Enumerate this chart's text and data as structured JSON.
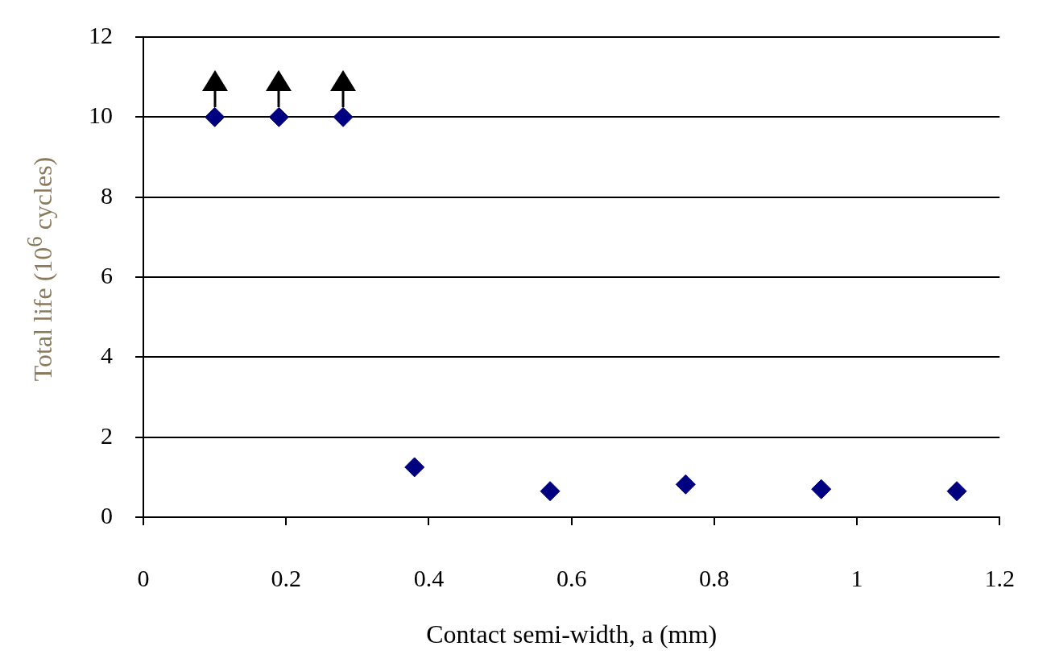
{
  "chart_data": {
    "type": "scatter",
    "xlabel": "Contact semi-width, a (mm)",
    "ylabel": "Total life (10$^{6}$ cycles)",
    "x": [
      0.1,
      0.19,
      0.28,
      0.38,
      0.57,
      0.76,
      0.95,
      1.14
    ],
    "series": [
      {
        "color": "#000080",
        "values": [
          10,
          10,
          10,
          1.25,
          0.65,
          0.82,
          0.7,
          0.65
        ]
      }
    ],
    "xlim": [
      0,
      1.2
    ],
    "xticks": [
      0,
      0.2,
      0.4,
      0.6,
      0.8,
      1,
      1.2
    ],
    "ylim": [
      0,
      12
    ],
    "yticks": [
      0,
      2,
      4,
      6,
      8,
      10,
      12
    ],
    "grid": "y",
    "marker": "diamond",
    "legend": false
  }
}
